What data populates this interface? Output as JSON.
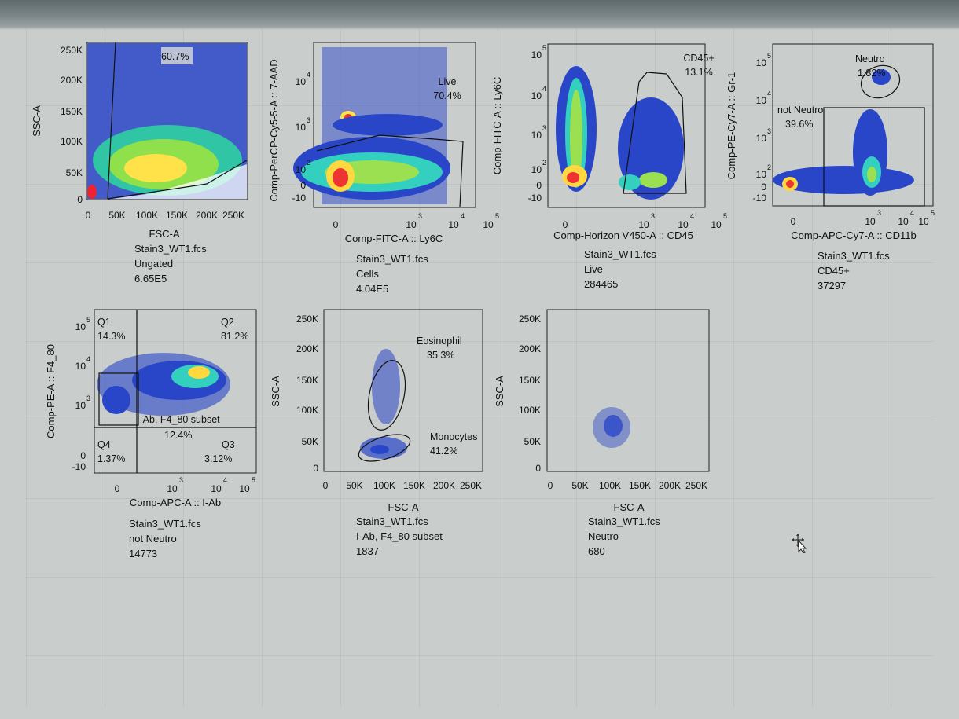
{
  "colors": {
    "dense": "#d22",
    "mid": "#ffe44a",
    "low": "#2ecc55",
    "sparse": "#1f3fbf",
    "gate": "#111111"
  },
  "plots": [
    {
      "id": "p1",
      "yaxis": {
        "label": "SSC-A",
        "ticks": [
          "250K",
          "200K",
          "150K",
          "100K",
          "50K",
          "0"
        ]
      },
      "xaxis": {
        "label": "FSC-A",
        "ticks": [
          "0",
          "50K",
          "100K",
          "150K",
          "200K",
          "250K"
        ]
      },
      "gates": [
        {
          "label": "60.7%",
          "pct": 60.7
        }
      ],
      "caption": {
        "file": "Stain3_WT1.fcs",
        "population": "Ungated",
        "count": "6.65E5"
      }
    },
    {
      "id": "p2",
      "yaxis": {
        "label": "Comp-PerCP-Cy5-5-A :: 7-AAD",
        "ticks": [
          "10",
          "10",
          "10",
          "0",
          "-10"
        ],
        "exps": [
          "4",
          "3",
          "2",
          "",
          ""
        ]
      },
      "xaxis": {
        "label": "Comp-FITC-A :: Ly6C",
        "ticks": [
          "0",
          "10",
          "10",
          "10"
        ],
        "exps": [
          "",
          "3",
          "4",
          "5"
        ]
      },
      "gates": [
        {
          "name": "Live",
          "label": "70.4%",
          "pct": 70.4
        }
      ],
      "caption": {
        "file": "Stain3_WT1.fcs",
        "population": "Cells",
        "count": "4.04E5"
      }
    },
    {
      "id": "p3",
      "yaxis": {
        "label": "Comp-FITC-A :: Ly6C",
        "ticks": [
          "10",
          "10",
          "10",
          "10",
          "0",
          "-10"
        ],
        "exps": [
          "5",
          "4",
          "3",
          "2",
          "",
          ""
        ]
      },
      "xaxis": {
        "label": "Comp-Horizon V450-A :: CD45",
        "ticks": [
          "0",
          "10",
          "10",
          "10"
        ],
        "exps": [
          "",
          "3",
          "4",
          "5"
        ]
      },
      "gates": [
        {
          "name": "CD45+",
          "label": "13.1%",
          "pct": 13.1
        }
      ],
      "caption": {
        "file": "Stain3_WT1.fcs",
        "population": "Live",
        "count": "284465"
      }
    },
    {
      "id": "p4",
      "yaxis": {
        "label": "Comp-PE-Cy7-A :: Gr-1",
        "ticks": [
          "10",
          "10",
          "10",
          "10",
          "0",
          "-10"
        ],
        "exps": [
          "5",
          "4",
          "3",
          "2",
          "",
          ""
        ]
      },
      "xaxis": {
        "label": "Comp-APC-Cy7-A :: CD11b",
        "ticks": [
          "0",
          "10",
          "10",
          "10"
        ],
        "exps": [
          "",
          "3",
          "4",
          "5"
        ]
      },
      "gates": [
        {
          "name": "Neutro",
          "label": "1.82%",
          "pct": 1.82
        },
        {
          "name": "not Neutro",
          "label": "39.6%",
          "pct": 39.6
        }
      ],
      "caption": {
        "file": "Stain3_WT1.fcs",
        "population": "CD45+",
        "count": "37297"
      }
    },
    {
      "id": "p5",
      "yaxis": {
        "label": "Comp-PE-A :: F4_80",
        "ticks": [
          "10",
          "10",
          "10",
          "0",
          "-10"
        ],
        "exps": [
          "5",
          "4",
          "3",
          "",
          ""
        ]
      },
      "xaxis": {
        "label": "Comp-APC-A :: I-Ab",
        "ticks": [
          "0",
          "10",
          "10",
          "10"
        ],
        "exps": [
          "",
          "3",
          "4",
          "5"
        ]
      },
      "gates": [
        {
          "name": "Q1",
          "label": "14.3%",
          "pct": 14.3
        },
        {
          "name": "Q2",
          "label": "81.2%",
          "pct": 81.2
        },
        {
          "name": "Q3",
          "label": "3.12%",
          "pct": 3.12
        },
        {
          "name": "Q4",
          "label": "1.37%",
          "pct": 1.37
        },
        {
          "name": "I-Ab, F4_80 subset",
          "label": "12.4%",
          "pct": 12.4
        }
      ],
      "caption": {
        "file": "Stain3_WT1.fcs",
        "population": "not Neutro",
        "count": "14773"
      }
    },
    {
      "id": "p6",
      "yaxis": {
        "label": "SSC-A",
        "ticks": [
          "250K",
          "200K",
          "150K",
          "100K",
          "50K",
          "0"
        ]
      },
      "xaxis": {
        "label": "FSC-A",
        "ticks": [
          "0",
          "50K",
          "100K",
          "150K",
          "200K",
          "250K"
        ]
      },
      "gates": [
        {
          "name": "Eosinophil",
          "label": "35.3%",
          "pct": 35.3
        },
        {
          "name": "Monocytes",
          "label": "41.2%",
          "pct": 41.2
        }
      ],
      "caption": {
        "file": "Stain3_WT1.fcs",
        "population": "I-Ab, F4_80 subset",
        "count": "1837"
      }
    },
    {
      "id": "p7",
      "yaxis": {
        "label": "SSC-A",
        "ticks": [
          "250K",
          "200K",
          "150K",
          "100K",
          "50K",
          "0"
        ]
      },
      "xaxis": {
        "label": "FSC-A",
        "ticks": [
          "0",
          "50K",
          "100K",
          "150K",
          "200K",
          "250K"
        ]
      },
      "gates": [],
      "caption": {
        "file": "Stain3_WT1.fcs",
        "population": "Neutro",
        "count": "680"
      }
    }
  ]
}
